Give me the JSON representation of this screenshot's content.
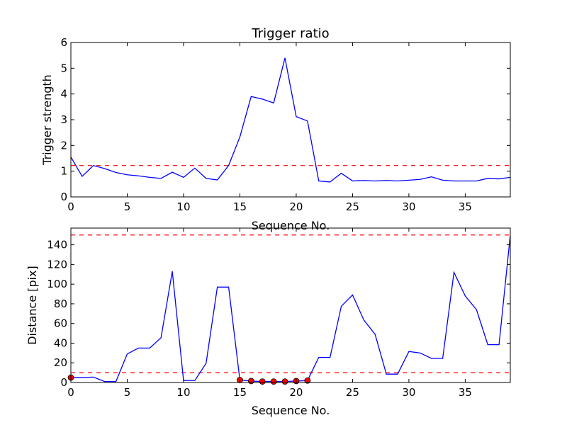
{
  "chart_data": [
    {
      "type": "line",
      "title": "Trigger ratio",
      "xlabel": "Sequence No.",
      "ylabel": "Trigger strength",
      "xlim": [
        0,
        39
      ],
      "ylim": [
        0,
        6
      ],
      "xticks": [
        "0",
        "5",
        "10",
        "15",
        "20",
        "25",
        "30",
        "35"
      ],
      "yticks": [
        "0",
        "1",
        "2",
        "3",
        "4",
        "5",
        "6"
      ],
      "grid": false,
      "line_color": "#0000ff",
      "threshold_color": "#ff0000",
      "series": [
        {
          "x": [
            0,
            1,
            2,
            3,
            4,
            5,
            6,
            7,
            8,
            9,
            10,
            11,
            12,
            13,
            14,
            15,
            16,
            17,
            18,
            19,
            20,
            21,
            22,
            23,
            24,
            25,
            26,
            27,
            28,
            29,
            30,
            31,
            32,
            33,
            34,
            35,
            36,
            37,
            38,
            39
          ],
          "values": [
            1.55,
            0.8,
            1.22,
            1.1,
            0.95,
            0.86,
            0.82,
            0.76,
            0.72,
            0.96,
            0.76,
            1.12,
            0.72,
            0.66,
            1.22,
            2.33,
            3.9,
            3.8,
            3.65,
            5.4,
            3.12,
            2.95,
            0.62,
            0.58,
            0.92,
            0.62,
            0.64,
            0.62,
            0.64,
            0.62,
            0.65,
            0.68,
            0.78,
            0.65,
            0.62,
            0.62,
            0.62,
            0.72,
            0.7,
            0.76
          ]
        }
      ],
      "thresholds": [
        1.22
      ]
    },
    {
      "type": "line",
      "title": "",
      "xlabel": "Sequence No.",
      "ylabel": "Distance [pix]",
      "xlim": [
        0,
        39
      ],
      "ylim": [
        0,
        157
      ],
      "xticks": [
        "0",
        "5",
        "10",
        "15",
        "20",
        "25",
        "30",
        "35"
      ],
      "yticks": [
        "0",
        "20",
        "40",
        "60",
        "80",
        "100",
        "120",
        "140"
      ],
      "grid": false,
      "line_color": "#0000ff",
      "marker_color": "#ff0000",
      "threshold_color": "#ff0000",
      "series": [
        {
          "x": [
            0,
            1,
            2,
            3,
            4,
            5,
            6,
            7,
            8,
            9,
            10,
            11,
            12,
            13,
            14,
            15,
            16,
            17,
            18,
            19,
            20,
            21,
            22,
            23,
            24,
            25,
            26,
            27,
            28,
            29,
            30,
            31,
            32,
            33,
            34,
            35,
            36,
            37,
            38,
            39
          ],
          "values": [
            5,
            5,
            5.5,
            1,
            1,
            29,
            35,
            35,
            45.5,
            113,
            2,
            2,
            19.5,
            97,
            97,
            2.5,
            1.5,
            1,
            1,
            1,
            1.5,
            2,
            25.5,
            25.5,
            77.5,
            89,
            63.5,
            49,
            8.5,
            8.5,
            31.5,
            30,
            24.5,
            24.5,
            112,
            88,
            74,
            38.5,
            38.5,
            150
          ]
        }
      ],
      "markers": {
        "x": [
          0,
          15,
          16,
          17,
          18,
          19,
          20,
          21
        ],
        "values": [
          5,
          2.5,
          1.5,
          1,
          1,
          1,
          1.5,
          2
        ]
      },
      "thresholds": [
        10,
        150
      ]
    }
  ]
}
